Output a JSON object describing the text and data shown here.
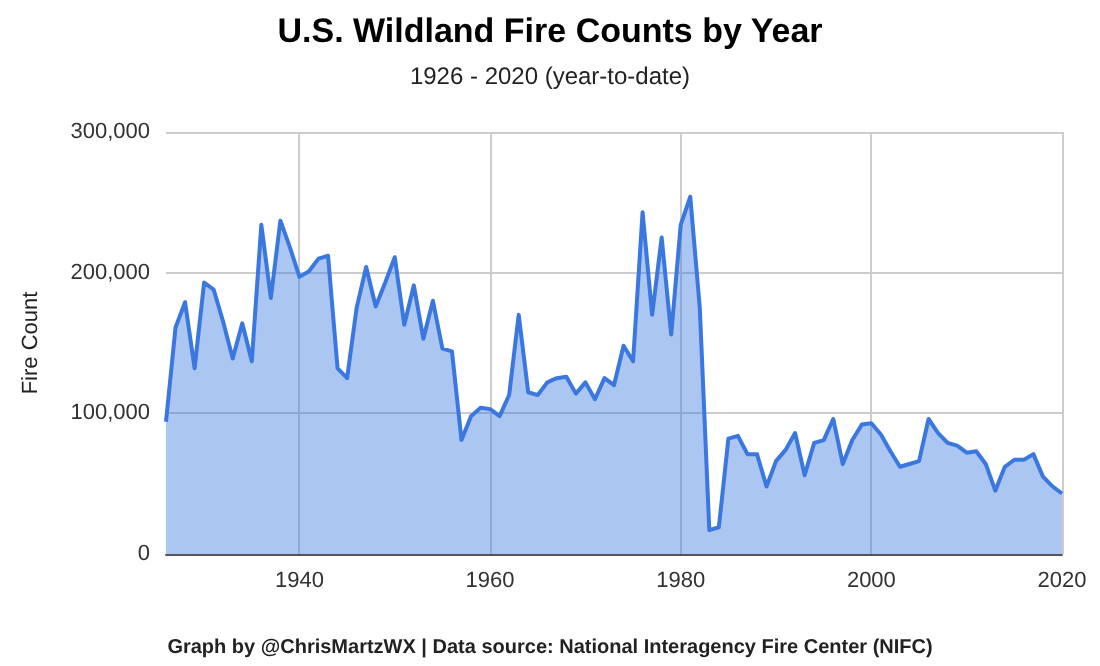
{
  "chart_data": {
    "type": "area",
    "title": "U.S. Wildland Fire Counts by Year",
    "subtitle": "1926 - 2020 (year-to-date)",
    "ylabel": "Fire Count",
    "annotations": [
      "Graph by @ChrisMartzWX | Data source: National Interagency Fire Center (NIFC)"
    ],
    "x": [
      1926,
      1927,
      1928,
      1929,
      1930,
      1931,
      1932,
      1933,
      1934,
      1935,
      1936,
      1937,
      1938,
      1939,
      1940,
      1941,
      1942,
      1943,
      1944,
      1945,
      1946,
      1947,
      1948,
      1949,
      1950,
      1951,
      1952,
      1953,
      1954,
      1955,
      1956,
      1957,
      1958,
      1959,
      1960,
      1961,
      1962,
      1963,
      1964,
      1965,
      1966,
      1967,
      1968,
      1969,
      1970,
      1971,
      1972,
      1973,
      1974,
      1975,
      1976,
      1977,
      1978,
      1979,
      1980,
      1981,
      1982,
      1983,
      1984,
      1985,
      1986,
      1987,
      1988,
      1989,
      1990,
      1991,
      1992,
      1993,
      1994,
      1995,
      1996,
      1997,
      1998,
      1999,
      2000,
      2001,
      2002,
      2003,
      2004,
      2005,
      2006,
      2007,
      2008,
      2009,
      2010,
      2011,
      2012,
      2013,
      2014,
      2015,
      2016,
      2017,
      2018,
      2019,
      2020
    ],
    "series": [
      {
        "color": "#3a78e0",
        "values": [
          94000,
          161000,
          179000,
          132000,
          193000,
          188000,
          165000,
          139000,
          164000,
          137000,
          234000,
          182000,
          237000,
          218000,
          197000,
          201000,
          210000,
          212000,
          132000,
          125000,
          175000,
          204000,
          176000,
          193000,
          211000,
          163000,
          191000,
          153000,
          180000,
          146000,
          144000,
          81000,
          98000,
          104000,
          103000,
          98000,
          113000,
          170000,
          115000,
          113000,
          122000,
          125000,
          126000,
          114000,
          122000,
          110000,
          125000,
          120000,
          148000,
          137000,
          243000,
          170000,
          225000,
          156000,
          234000,
          254000,
          175000,
          17000,
          19000,
          82000,
          84000,
          71000,
          71000,
          48000,
          66000,
          74000,
          86000,
          56000,
          79000,
          81000,
          96000,
          64000,
          81000,
          92000,
          93000,
          85000,
          73000,
          62000,
          64000,
          66000,
          96000,
          86000,
          79000,
          77000,
          72000,
          73000,
          64000,
          45000,
          62000,
          67000,
          67000,
          71000,
          55000,
          48000,
          43000
        ]
      }
    ],
    "xlim": [
      1926,
      2020
    ],
    "xticks": [
      1940,
      1960,
      1980,
      2000,
      2020
    ],
    "ylim": [
      0,
      300000
    ],
    "yticks": [
      {
        "value": 0,
        "label": "0"
      },
      {
        "value": 100000,
        "label": "100,000"
      },
      {
        "value": 200000,
        "label": "200,000"
      },
      {
        "value": 300000,
        "label": "300,000"
      }
    ],
    "grid": true,
    "marker": "none",
    "line_style": "solid"
  }
}
